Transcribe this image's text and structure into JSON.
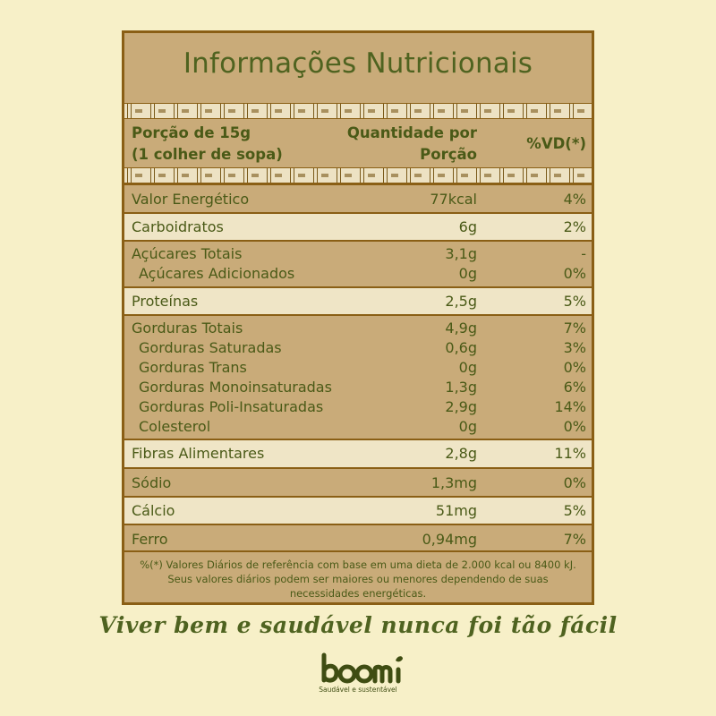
{
  "title": "Informações Nutricionais",
  "header": {
    "portion_line1": "Porção de 15g",
    "portion_line2": "(1 colher de sopa)",
    "qty_line1": "Quantidade por",
    "qty_line2": "Porção",
    "vd": "%VD(*)"
  },
  "rows": [
    {
      "name": "Valor Energético",
      "qty": "77kcal",
      "vd": "4%"
    },
    {
      "name": "Carboidratos",
      "qty": "6g",
      "vd": "2%"
    },
    {
      "name": "Açúcares Totais",
      "qty": "3,1g",
      "vd": "-"
    },
    {
      "name": "Açúcares Adicionados",
      "qty": "0g",
      "vd": "0%"
    },
    {
      "name": "Proteínas",
      "qty": "2,5g",
      "vd": "5%"
    },
    {
      "name": "Gorduras Totais",
      "qty": "4,9g",
      "vd": "7%"
    },
    {
      "name": "Gorduras Saturadas",
      "qty": "0,6g",
      "vd": "3%"
    },
    {
      "name": "Gorduras Trans",
      "qty": "0g",
      "vd": "0%"
    },
    {
      "name": "Gorduras Monoinsaturadas",
      "qty": "1,3g",
      "vd": "6%"
    },
    {
      "name": "Gorduras Poli-Insaturadas",
      "qty": "2,9g",
      "vd": "14%"
    },
    {
      "name": "Colesterol",
      "qty": "0g",
      "vd": "0%"
    },
    {
      "name": "Fibras Alimentares",
      "qty": "2,8g",
      "vd": "11%"
    },
    {
      "name": "Sódio",
      "qty": "1,3mg",
      "vd": "0%"
    },
    {
      "name": "Cálcio",
      "qty": "51mg",
      "vd": "5%"
    },
    {
      "name": "Ferro",
      "qty": "0,94mg",
      "vd": "7%"
    }
  ],
  "footnote": "%(*) Valores Diários de referência com base em uma dieta de 2.000 kcal ou 8400 kJ. Seus valores diários podem ser maiores ou menores dependendo de suas necessidades energéticas.",
  "slogan": "Viver bem e saudável nunca foi tão fácil",
  "brand": {
    "name": "boomi",
    "tagline": "Saudável e sustentável"
  },
  "colors": {
    "background": "#f7f0c8",
    "panel": "#c9ab79",
    "border": "#8a5f15",
    "light_row": "#efe5c6",
    "text": "#4a5a17"
  }
}
